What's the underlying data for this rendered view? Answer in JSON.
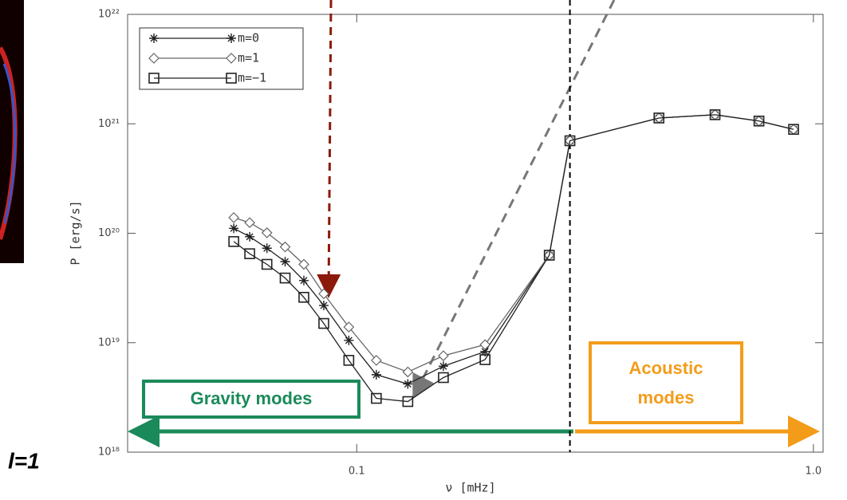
{
  "chart_data": {
    "type": "line",
    "xlabel": "ν [mHz]",
    "ylabel": "P [erg/s]",
    "xscale": "log",
    "yscale": "log",
    "xlim": [
      0.0315,
      1.05
    ],
    "ylim": [
      1e+18,
      1e+22
    ],
    "xticks": [
      0.1,
      {
        "value": 1,
        "label": "1.0"
      }
    ],
    "yticks": [
      {
        "value": 1e+18,
        "label": "10¹⁸"
      },
      {
        "value": 1e+19,
        "label": "10¹⁹"
      },
      {
        "value": 1e+20,
        "label": "10²⁰"
      },
      {
        "value": 1e+21,
        "label": "10²¹"
      },
      {
        "value": 1e+22,
        "label": "10²²"
      }
    ],
    "x": [
      0.0538,
      0.0583,
      0.0636,
      0.0697,
      0.0766,
      0.0847,
      0.0961,
      0.1104,
      0.1294,
      0.1548,
      0.191,
      0.264,
      0.293,
      0.459,
      0.609,
      0.76,
      0.905
    ],
    "series": [
      {
        "name": "m=0",
        "marker": "star",
        "color": "#222",
        "values": [
          1.11e+20,
          9.3e+19,
          7.3e+19,
          5.5e+19,
          3.7e+19,
          2.19e+19,
          1.05e+19,
          5.1e+18,
          4.2e+18,
          6.1e+18,
          8.3e+18,
          6.3e+19,
          7e+20,
          1.13e+21,
          1.21e+21,
          1.06e+21,
          8.9e+20
        ]
      },
      {
        "name": "m=1",
        "marker": "diamond",
        "color": "#666",
        "values": [
          1.39e+20,
          1.25e+20,
          1.01e+20,
          7.5e+19,
          5.2e+19,
          2.8e+19,
          1.39e+19,
          6.9e+18,
          5.4e+18,
          7.6e+18,
          9.6e+18,
          6.3e+19,
          7e+20,
          1.13e+21,
          1.21e+21,
          1.06e+21,
          8.9e+20
        ]
      },
      {
        "name": "m=−1",
        "marker": "square",
        "color": "#222",
        "values": [
          8.4e+19,
          6.5e+19,
          5.2e+19,
          3.9e+19,
          2.6e+19,
          1.5e+19,
          6.9e+18,
          3.1e+18,
          2.9e+18,
          4.8e+18,
          7e+18,
          6.3e+19,
          7e+20,
          1.13e+21,
          1.21e+21,
          1.06e+21,
          8.9e+20
        ]
      }
    ],
    "vline": 0.293,
    "annotations": {
      "gravity": "Gravity modes",
      "acoustic": [
        "Acoustic",
        "modes"
      ],
      "panel": "l=1"
    }
  }
}
